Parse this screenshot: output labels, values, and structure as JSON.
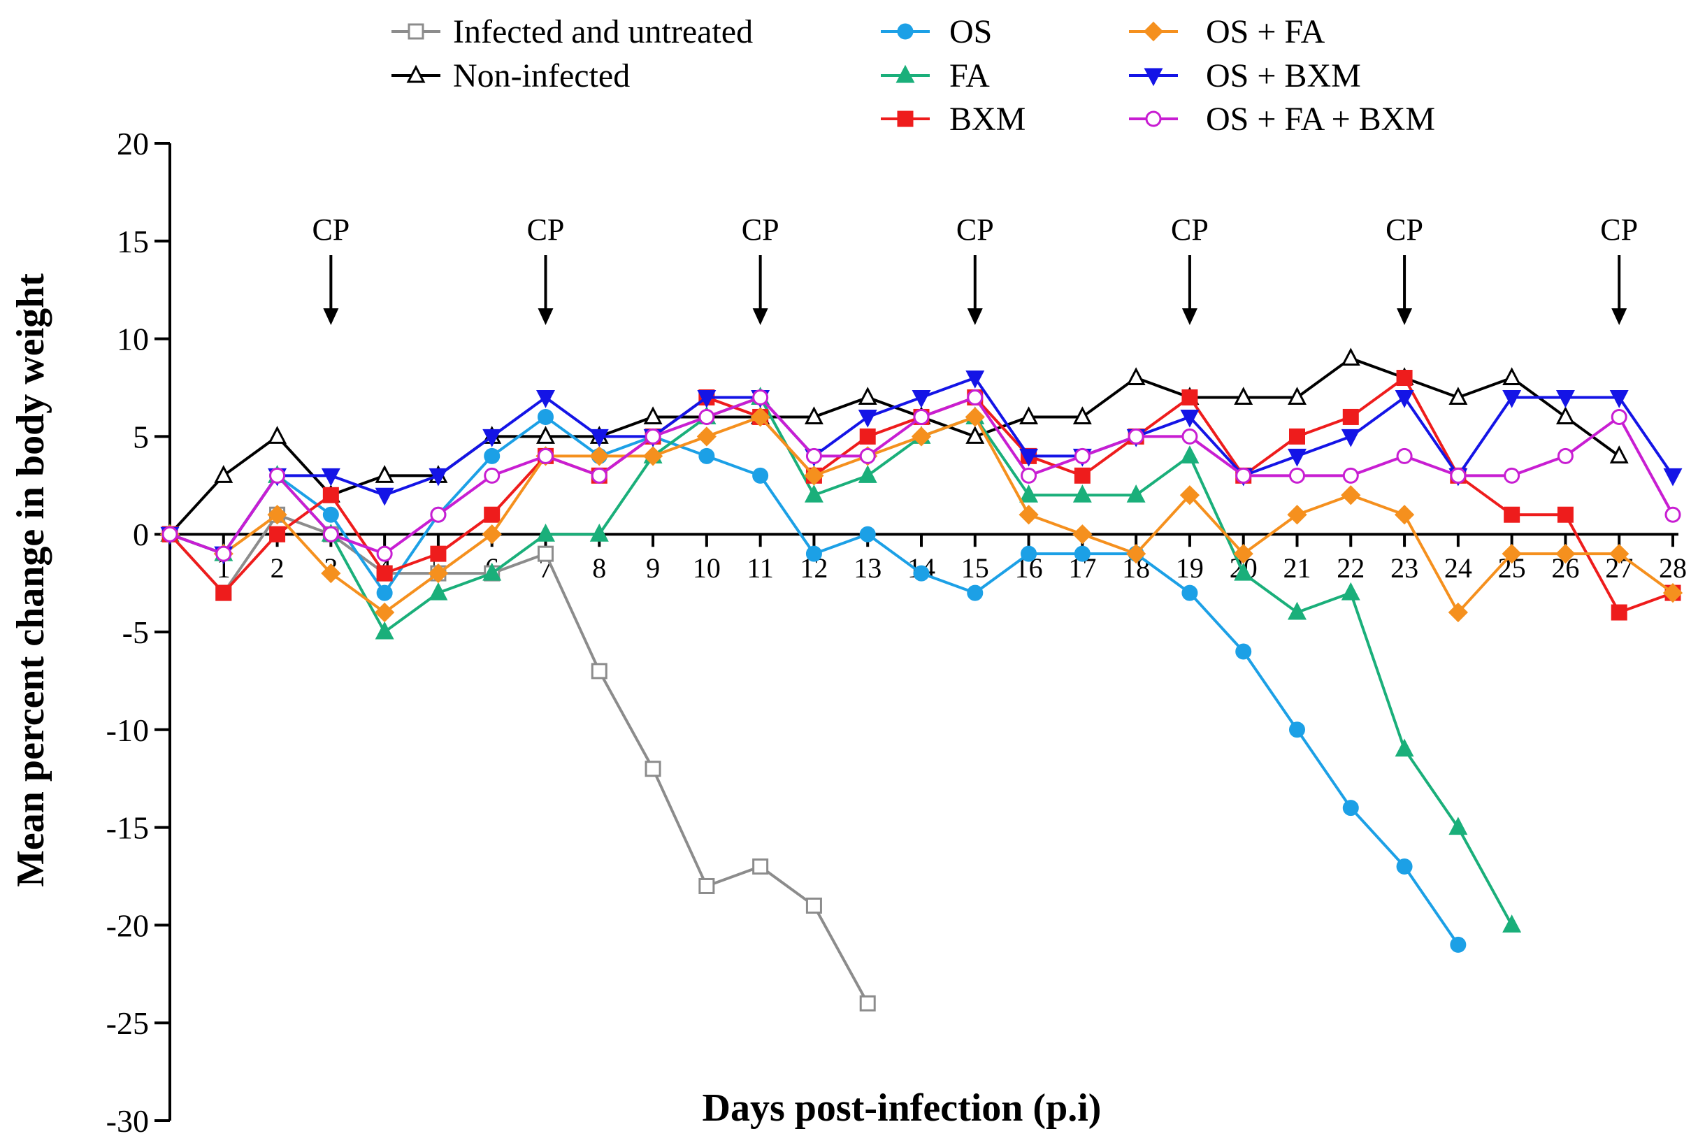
{
  "chart_data": {
    "type": "line",
    "xlabel": "Days post-infection (p.i)",
    "ylabel": "Mean percent change in body weight",
    "ylim": [
      -30,
      20
    ],
    "yticks": [
      20,
      15,
      10,
      5,
      0,
      -5,
      -10,
      -15,
      -20,
      -25,
      -30
    ],
    "xticks": [
      1,
      2,
      3,
      4,
      5,
      6,
      7,
      8,
      9,
      10,
      11,
      12,
      13,
      14,
      15,
      16,
      17,
      18,
      19,
      20,
      21,
      22,
      23,
      24,
      25,
      26,
      27,
      28
    ],
    "xlim": [
      0,
      28
    ],
    "legend": "top",
    "annotations": [
      {
        "label": "CP",
        "x": 3
      },
      {
        "label": "CP",
        "x": 7
      },
      {
        "label": "CP",
        "x": 11
      },
      {
        "label": "CP",
        "x": 15
      },
      {
        "label": "CP",
        "x": 19
      },
      {
        "label": "CP",
        "x": 23
      },
      {
        "label": "CP",
        "x": 27
      }
    ],
    "series": [
      {
        "name": "Infected and untreated",
        "color": "#8c8c8c",
        "marker": "square-open",
        "x": [
          0,
          1,
          2,
          3,
          4,
          5,
          6,
          7,
          8,
          9,
          10,
          11,
          12,
          13
        ],
        "values": [
          0,
          -3,
          1,
          0,
          -2,
          -2,
          -2,
          -1,
          -7,
          -12,
          -18,
          -17,
          -19,
          -24
        ]
      },
      {
        "name": "Non-infected",
        "color": "#000000",
        "marker": "triangle-open",
        "x": [
          0,
          1,
          2,
          3,
          4,
          5,
          6,
          7,
          8,
          9,
          10,
          11,
          12,
          13,
          14,
          15,
          16,
          17,
          18,
          19,
          20,
          21,
          22,
          23,
          24,
          25,
          26,
          27
        ],
        "values": [
          0,
          3,
          5,
          2,
          3,
          3,
          5,
          5,
          5,
          6,
          6,
          6,
          6,
          7,
          6,
          5,
          6,
          6,
          8,
          7,
          7,
          7,
          9,
          8,
          7,
          8,
          6,
          4
        ]
      },
      {
        "name": "OS",
        "color": "#1ca0e6",
        "marker": "circle",
        "x": [
          0,
          1,
          2,
          3,
          4,
          5,
          6,
          7,
          8,
          9,
          10,
          11,
          12,
          13,
          14,
          15,
          16,
          17,
          18,
          19,
          20,
          21,
          22,
          23,
          24
        ],
        "values": [
          0,
          -1,
          3,
          1,
          -3,
          1,
          4,
          6,
          4,
          5,
          4,
          3,
          -1,
          0,
          -2,
          -3,
          -1,
          -1,
          -1,
          -3,
          -6,
          -10,
          -14,
          -17,
          -21
        ]
      },
      {
        "name": "FA",
        "color": "#1aaf7a",
        "marker": "triangle",
        "x": [
          0,
          1,
          2,
          3,
          4,
          5,
          6,
          7,
          8,
          9,
          10,
          11,
          12,
          13,
          14,
          15,
          16,
          17,
          18,
          19,
          20,
          21,
          22,
          23,
          24,
          25
        ],
        "values": [
          0,
          -1,
          3,
          0,
          -5,
          -3,
          -2,
          0,
          0,
          4,
          6,
          7,
          2,
          3,
          5,
          6,
          2,
          2,
          2,
          4,
          -2,
          -4,
          -3,
          -11,
          -15,
          -20
        ]
      },
      {
        "name": "BXM",
        "color": "#ee1c1c",
        "marker": "square",
        "x": [
          0,
          1,
          2,
          3,
          4,
          5,
          6,
          7,
          8,
          9,
          10,
          11,
          12,
          13,
          14,
          15,
          16,
          17,
          18,
          19,
          20,
          21,
          22,
          23,
          24,
          25,
          26,
          27,
          28
        ],
        "values": [
          0,
          -3,
          0,
          2,
          -2,
          -1,
          1,
          4,
          3,
          5,
          7,
          6,
          3,
          5,
          6,
          7,
          4,
          3,
          5,
          7,
          3,
          5,
          6,
          8,
          3,
          1,
          1,
          -4,
          -3
        ]
      },
      {
        "name": "OS + FA",
        "color": "#f5901e",
        "marker": "diamond",
        "x": [
          0,
          1,
          2,
          3,
          4,
          5,
          6,
          7,
          8,
          9,
          10,
          11,
          12,
          13,
          14,
          15,
          16,
          17,
          18,
          19,
          20,
          21,
          22,
          23,
          24,
          25,
          26,
          27,
          28
        ],
        "values": [
          0,
          -1,
          1,
          -2,
          -4,
          -2,
          0,
          4,
          4,
          4,
          5,
          6,
          3,
          4,
          5,
          6,
          1,
          0,
          -1,
          2,
          -1,
          1,
          2,
          1,
          -4,
          -1,
          -1,
          -1,
          -3
        ]
      },
      {
        "name": "OS + BXM",
        "color": "#1414e6",
        "marker": "triangle-down",
        "x": [
          0,
          1,
          2,
          3,
          4,
          5,
          6,
          7,
          8,
          9,
          10,
          11,
          12,
          13,
          14,
          15,
          16,
          17,
          18,
          19,
          20,
          21,
          22,
          23,
          24,
          25,
          26,
          27,
          28
        ],
        "values": [
          0,
          -1,
          3,
          3,
          2,
          3,
          5,
          7,
          5,
          5,
          7,
          7,
          4,
          6,
          7,
          8,
          4,
          4,
          5,
          6,
          3,
          4,
          5,
          7,
          3,
          7,
          7,
          7,
          3
        ]
      },
      {
        "name": "OS + FA + BXM",
        "color": "#c81ed2",
        "marker": "circle-open",
        "x": [
          0,
          1,
          2,
          3,
          4,
          5,
          6,
          7,
          8,
          9,
          10,
          11,
          12,
          13,
          14,
          15,
          16,
          17,
          18,
          19,
          20,
          21,
          22,
          23,
          24,
          25,
          26,
          27,
          28
        ],
        "values": [
          0,
          -1,
          3,
          0,
          -1,
          1,
          3,
          4,
          3,
          5,
          6,
          7,
          4,
          4,
          6,
          7,
          3,
          4,
          5,
          5,
          3,
          3,
          3,
          4,
          3,
          3,
          4,
          6,
          1
        ]
      }
    ]
  }
}
